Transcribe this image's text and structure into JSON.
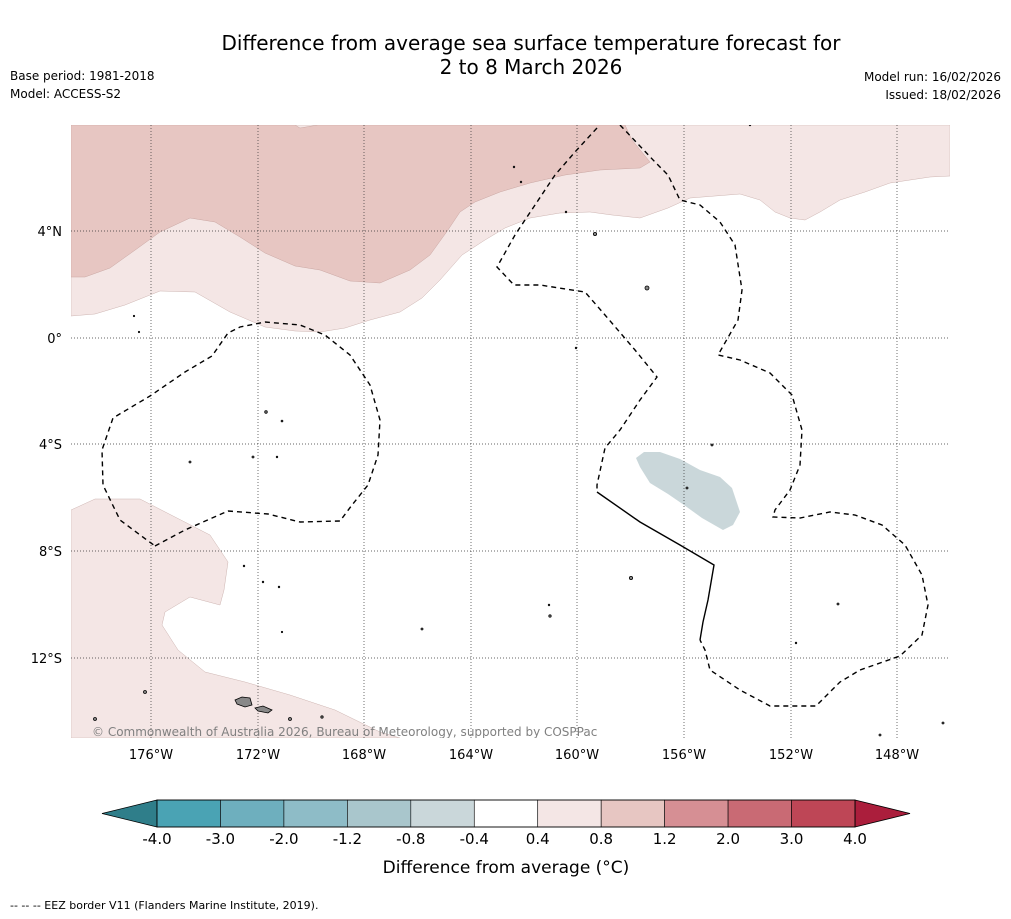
{
  "title": {
    "line1": "Difference from average sea surface temperature forecast for",
    "line2": "2 to 8 March 2026"
  },
  "meta_left": {
    "base_period": "Base period: 1981-2018",
    "model": "Model: ACCESS-S2"
  },
  "meta_right": {
    "model_run": "Model run: 16/02/2026",
    "issued": "Issued: 18/02/2026"
  },
  "map": {
    "copyright": "© Commonwealth of Australia 2026, Bureau of Meteorology, supported by COSPPac",
    "lon_labels": [
      "176°W",
      "172°W",
      "168°W",
      "164°W",
      "160°W",
      "156°W",
      "152°W",
      "148°W"
    ],
    "lat_labels": [
      "4°N",
      "0°",
      "4°S",
      "8°S",
      "12°S"
    ]
  },
  "legend": {
    "title": "Difference from average (°C)",
    "ticks": [
      "-4.0",
      "-3.0",
      "-2.0",
      "-1.2",
      "-0.8",
      "-0.4",
      "0.4",
      "0.8",
      "1.2",
      "2.0",
      "3.0",
      "4.0"
    ],
    "colors": [
      "#4aa3b4",
      "#6eafbe",
      "#8ebcc7",
      "#a9c6cc",
      "#cad7da",
      "#ffffff",
      "#f4e6e5",
      "#e7c6c2",
      "#d68f94",
      "#c96a74",
      "#be4656"
    ],
    "low_color": "#2f7e8a",
    "high_color": "#ab1e3c"
  },
  "footer": "--  --  -- EEZ border V11 (Flanders Marine Institute, 2019)."
}
